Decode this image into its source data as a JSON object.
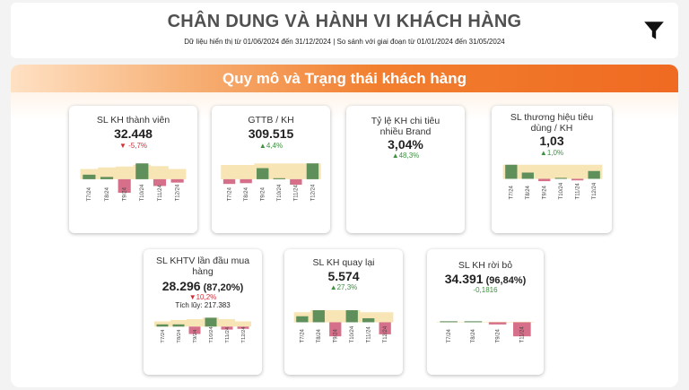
{
  "header": {
    "title": "CHÂN DUNG VÀ HÀNH VI KHÁCH HÀNG",
    "subtitle": "Dữ liệu hiển thị từ 01/06/2024 đến 31/12/2024 | So sánh với giai đoạn từ 01/01/2024 đến 31/05/2024",
    "filter_icon": "filter-icon"
  },
  "section": {
    "title": "Quy mô và Trạng thái khách hàng"
  },
  "colors": {
    "up": "#5f8f5a",
    "down": "#d6708a",
    "band": "#f8e5b6",
    "accent": "#f07a2c"
  },
  "cards": [
    {
      "title": "SL KH thành viên",
      "value": "32.448",
      "delta": "▼ -5,7%",
      "delta_dir": "down",
      "chart_data": {
        "type": "bar",
        "categories": [
          "T7/24",
          "T8/24",
          "T9/24",
          "T10/24",
          "T11/24",
          "T12/24"
        ],
        "values": [
          2,
          1,
          -6,
          7,
          -3,
          -1.5
        ],
        "band": [
          4.5,
          5.2,
          5.6,
          6.4,
          5.8,
          4.5
        ]
      }
    },
    {
      "title": "GTTB / KH",
      "value": "309.515",
      "delta": "▲4,4%",
      "delta_dir": "up",
      "chart_data": {
        "type": "bar",
        "categories": [
          "T7/24",
          "T8/24",
          "T9/24",
          "T10/24",
          "T11/24",
          "T12/24"
        ],
        "values": [
          -3,
          -2.5,
          7,
          0.3,
          -3.5,
          10
        ],
        "band": [
          9,
          9,
          10,
          10,
          10,
          10
        ]
      }
    },
    {
      "title": "Tỷ lệ KH chi tiêu nhiều Brand",
      "value": "3,04%",
      "delta": "▲48,3%",
      "delta_dir": "up"
    },
    {
      "title": "SL thương hiệu tiêu dùng / KH",
      "value": "1,03",
      "delta": "▲1,0%",
      "delta_dir": "up",
      "chart_data": {
        "type": "bar",
        "categories": [
          "T7/24",
          "T8/24",
          "T9/24",
          "T10/24",
          "T11/24",
          "T12/24"
        ],
        "values": [
          9,
          4,
          -1.5,
          0.3,
          -1,
          5
        ],
        "band": [
          9,
          9,
          9,
          9,
          9,
          9
        ]
      }
    },
    {
      "title": "SL KHTV lần đầu mua hàng",
      "value": "28.296",
      "pct": " (87,20%)",
      "delta": "▼10,2%",
      "delta_dir": "down",
      "note": "Tích lũy: 217.383",
      "chart_data": {
        "type": "bar",
        "categories": [
          "T7/24",
          "T8/24",
          "T9/24",
          "T10/24",
          "T11/24",
          "T12/24"
        ],
        "values": [
          1.5,
          1.5,
          -5,
          6,
          -2,
          -1.5
        ],
        "band": [
          3.5,
          4.5,
          5,
          6,
          5,
          3.5
        ]
      }
    },
    {
      "title": "SL KH quay lại",
      "value": "5.574",
      "delta": "▲27,3%",
      "delta_dir": "up",
      "chart_data": {
        "type": "bar",
        "categories": [
          "T7/24",
          "T8/24",
          "T9/24",
          "T10/24",
          "T11/24",
          "T12/24"
        ],
        "values": [
          3,
          6,
          -7,
          6,
          2,
          -6
        ],
        "band": [
          5,
          6,
          6,
          6,
          5,
          5
        ]
      }
    },
    {
      "title": "SL KH rời bỏ",
      "value": "34.391",
      "pct": " (96,84%)",
      "delta": "-0,1816",
      "delta_dir": "neutral",
      "chart_data": {
        "type": "bar",
        "categories": [
          "T7/24",
          "T8/24",
          "T9/24",
          "T11/24"
        ],
        "values": [
          0.6,
          0.8,
          -2,
          -13
        ],
        "band": [
          0.5,
          0.5,
          0.5,
          0.5
        ]
      }
    }
  ]
}
